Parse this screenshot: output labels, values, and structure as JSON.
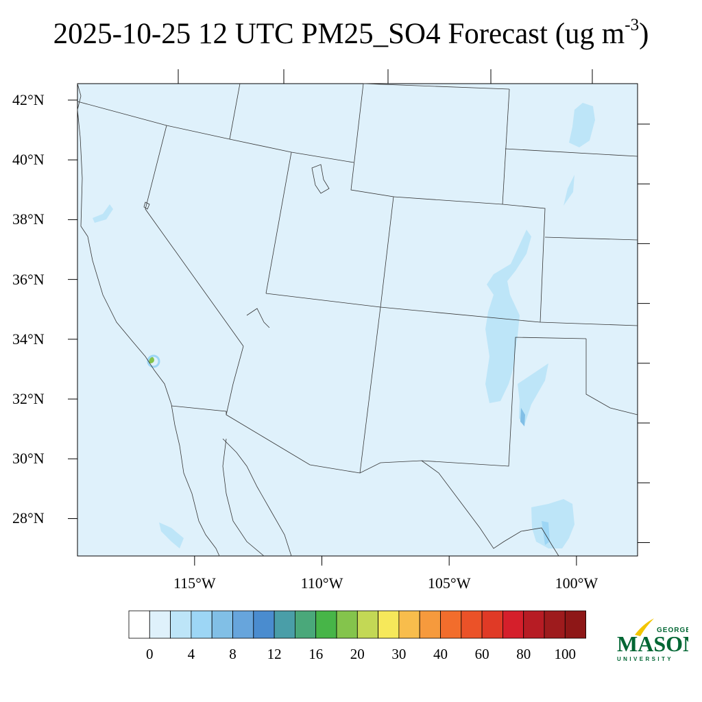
{
  "title": {
    "main": "2025-10-25 12 UTC PM25_SO4 Forecast (ug m",
    "sup": "-3",
    "close": ")"
  },
  "map": {
    "extent": {
      "lon_min": -119.6,
      "lon_max": -97.6,
      "lat_min": 26.75,
      "lat_max": 42.55
    },
    "background_color": "#dff1fb",
    "lat_labels": [
      {
        "lat": 42,
        "text": "42°N"
      },
      {
        "lat": 40,
        "text": "40°N"
      },
      {
        "lat": 38,
        "text": "38°N"
      },
      {
        "lat": 36,
        "text": "36°N"
      },
      {
        "lat": 34,
        "text": "34°N"
      },
      {
        "lat": 32,
        "text": "32°N"
      },
      {
        "lat": 30,
        "text": "30°N"
      },
      {
        "lat": 28,
        "text": "28°N"
      }
    ],
    "lon_labels": [
      {
        "lon": -115,
        "text": "115°W"
      },
      {
        "lon": -110,
        "text": "110°W"
      },
      {
        "lon": -105,
        "text": "105°W"
      },
      {
        "lon": -100,
        "text": "100°W"
      }
    ]
  },
  "colorbar": {
    "colors": [
      "#ffffff",
      "#dff1fb",
      "#bde5f8",
      "#9dd6f5",
      "#81bfe6",
      "#67a5dc",
      "#4a8ccf",
      "#4a9ea8",
      "#4aa87a",
      "#47b548",
      "#84c44c",
      "#c3d855",
      "#f6e85a",
      "#f8bd4c",
      "#f69a3d",
      "#f26d2c",
      "#eb5228",
      "#e03a26",
      "#d51f2b",
      "#b71c24",
      "#9e1b1d",
      "#8e1717"
    ],
    "labels": [
      {
        "index": 1,
        "text": "0"
      },
      {
        "index": 3,
        "text": "4"
      },
      {
        "index": 5,
        "text": "8"
      },
      {
        "index": 7,
        "text": "12"
      },
      {
        "index": 9,
        "text": "16"
      },
      {
        "index": 11,
        "text": "20"
      },
      {
        "index": 13,
        "text": "30"
      },
      {
        "index": 15,
        "text": "40"
      },
      {
        "index": 17,
        "text": "60"
      },
      {
        "index": 19,
        "text": "80"
      },
      {
        "index": 21,
        "text": "100"
      }
    ]
  },
  "logo": {
    "top_text": "GEORGE",
    "main_text": "MASON",
    "bottom_text": "UNIVERSITY",
    "green": "#006633",
    "gold": "#f2c500"
  }
}
